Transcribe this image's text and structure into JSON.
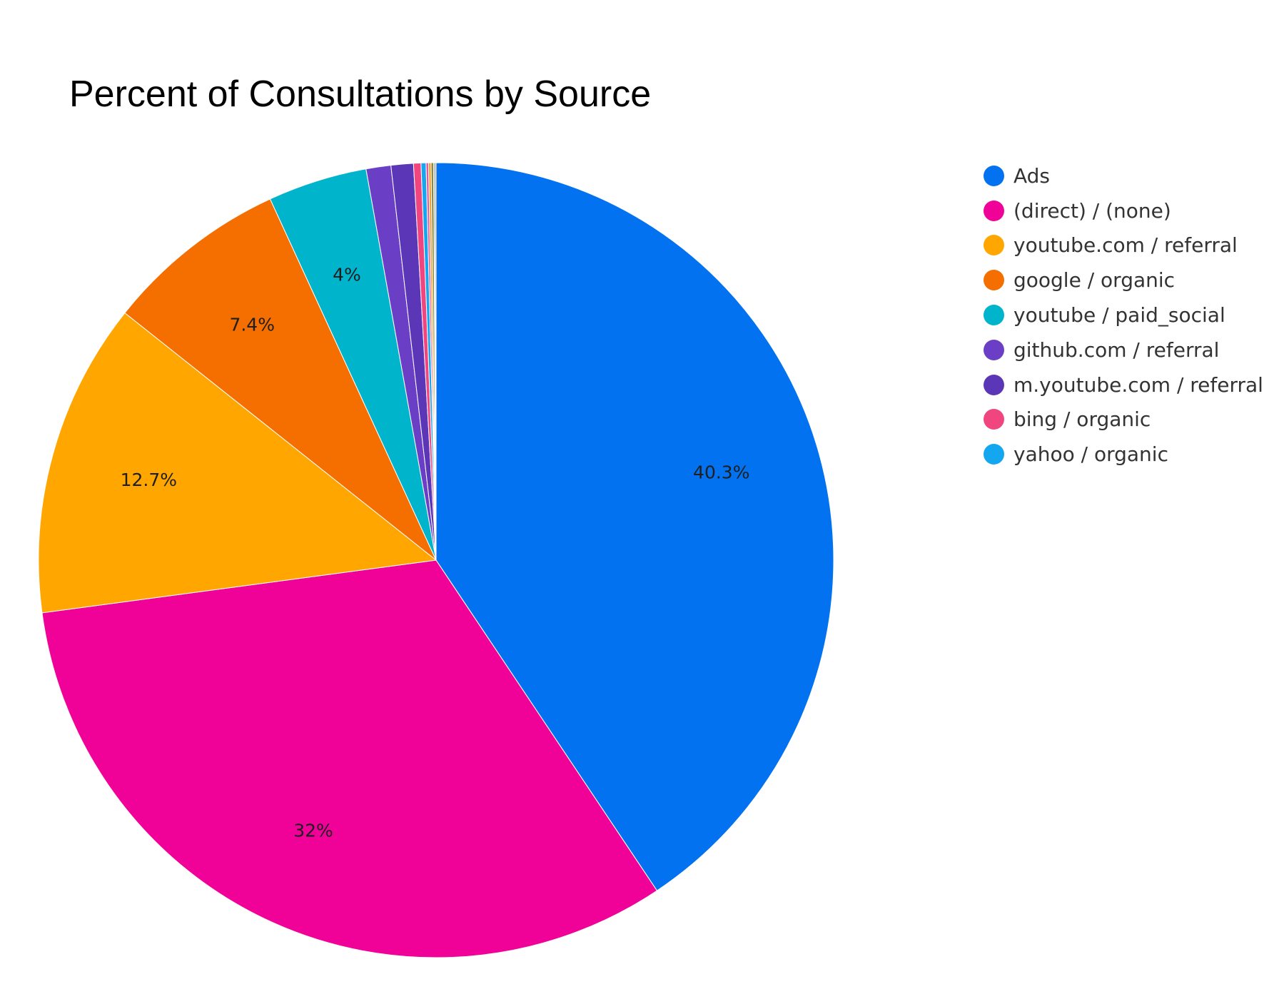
{
  "chart_data": {
    "type": "pie",
    "title": "Percent of Consultations by Source",
    "legend_position": "right",
    "start_angle": "top",
    "direction": "clockwise",
    "slices": [
      {
        "name": "Ads",
        "value": 40.3,
        "label": "40.3%",
        "color": "#0272f0"
      },
      {
        "name": "(direct) / (none)",
        "value": 32.0,
        "label": "32%",
        "color": "#f00299"
      },
      {
        "name": "youtube.com / referral",
        "value": 12.7,
        "label": "12.7%",
        "color": "#ffa600"
      },
      {
        "name": "google / organic",
        "value": 7.4,
        "label": "7.4%",
        "color": "#f46e00"
      },
      {
        "name": "youtube / paid_social",
        "value": 4.0,
        "label": "4%",
        "color": "#00b4cc"
      },
      {
        "name": "github.com / referral",
        "value": 1.0,
        "label": "",
        "color": "#6b3ec6"
      },
      {
        "name": "m.youtube.com / referral",
        "value": 0.9,
        "label": "",
        "color": "#5b37b8"
      },
      {
        "name": "bing / organic",
        "value": 0.3,
        "label": "",
        "color": "#f0457e"
      },
      {
        "name": "yahoo / organic",
        "value": 0.2,
        "label": "",
        "color": "#14a7ef"
      },
      {
        "name": "",
        "value": 0.1,
        "label": "",
        "color": "#e05a9e"
      },
      {
        "name": "",
        "value": 0.1,
        "label": "",
        "color": "#f0a030"
      },
      {
        "name": "",
        "value": 0.1,
        "label": "",
        "color": "#8a8a3a"
      },
      {
        "name": "",
        "value": 0.05,
        "label": "",
        "color": "#3a8ac0"
      },
      {
        "name": "",
        "value": 0.05,
        "label": "",
        "color": "#c07a30"
      }
    ],
    "legend": [
      {
        "label": "Ads",
        "color": "#0272f0"
      },
      {
        "label": "(direct) / (none)",
        "color": "#f00299"
      },
      {
        "label": "youtube.com / referral",
        "color": "#ffa600"
      },
      {
        "label": "google / organic",
        "color": "#f46e00"
      },
      {
        "label": "youtube / paid_social",
        "color": "#00b4cc"
      },
      {
        "label": "github.com / referral",
        "color": "#6b3ec6"
      },
      {
        "label": "m.youtube.com / referral",
        "color": "#5b37b8"
      },
      {
        "label": "bing / organic",
        "color": "#f0457e"
      },
      {
        "label": "yahoo / organic",
        "color": "#14a7ef"
      }
    ]
  }
}
